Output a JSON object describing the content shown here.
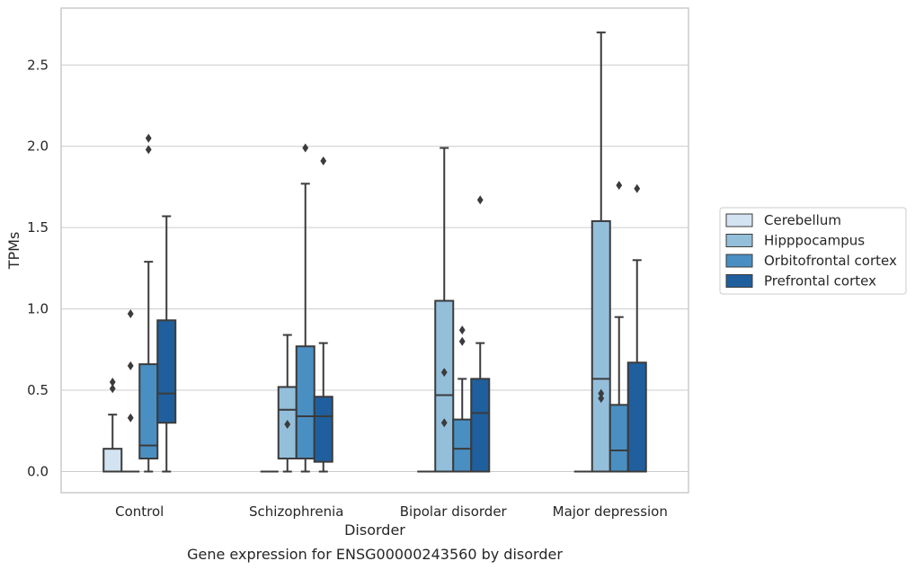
{
  "chart_data": {
    "type": "boxplot",
    "title": "",
    "caption": "Gene expression for ENSG00000243560 by disorder",
    "xlabel": "Disorder",
    "ylabel": "TPMs",
    "ylim": [
      -0.13,
      2.85
    ],
    "yticks": [
      "0.0",
      "0.5",
      "1.0",
      "1.5",
      "2.0",
      "2.5"
    ],
    "grid": "horizontal",
    "legend_position": "right",
    "categories": [
      "Control",
      "Schizophrenia",
      "Bipolar disorder",
      "Major depression"
    ],
    "series": [
      {
        "name": "Cerebellum",
        "color": "#d3e3f2",
        "boxes": [
          {
            "q1": 0.0,
            "median": 0.0,
            "q3": 0.14,
            "whislo": 0.0,
            "whishi": 0.35,
            "fliers": [
              0.51,
              0.55
            ]
          },
          {
            "q1": 0.0,
            "median": 0.0,
            "q3": 0.0,
            "whislo": 0.0,
            "whishi": 0.0,
            "fliers": []
          },
          {
            "q1": 0.0,
            "median": 0.0,
            "q3": 0.0,
            "whislo": 0.0,
            "whishi": 0.0,
            "fliers": []
          },
          {
            "q1": 0.0,
            "median": 0.0,
            "q3": 0.0,
            "whislo": 0.0,
            "whishi": 0.0,
            "fliers": []
          }
        ]
      },
      {
        "name": "Hipppocampus",
        "color": "#93bfdb",
        "boxes": [
          {
            "q1": 0.0,
            "median": 0.0,
            "q3": 0.0,
            "whislo": 0.0,
            "whishi": 0.0,
            "fliers": [
              0.33,
              0.65,
              0.97
            ]
          },
          {
            "q1": 0.08,
            "median": 0.38,
            "q3": 0.52,
            "whislo": 0.0,
            "whishi": 0.84,
            "fliers": [
              0.29
            ]
          },
          {
            "q1": 0.0,
            "median": 0.47,
            "q3": 1.05,
            "whislo": 0.0,
            "whishi": 1.99,
            "fliers": []
          },
          {
            "q1": 0.0,
            "median": 0.57,
            "q3": 1.54,
            "whislo": 0.0,
            "whishi": 2.7,
            "fliers": []
          }
        ]
      },
      {
        "name": "Orbitofrontal cortex",
        "color": "#4a8fc2",
        "boxes": [
          {
            "q1": 0.08,
            "median": 0.16,
            "q3": 0.66,
            "whislo": 0.0,
            "whishi": 1.29,
            "fliers": [
              1.98,
              2.05
            ]
          },
          {
            "q1": 0.08,
            "median": 0.34,
            "q3": 0.77,
            "whislo": 0.0,
            "whishi": 1.77,
            "fliers": [
              1.99
            ]
          },
          {
            "q1": 0.0,
            "median": 0.14,
            "q3": 0.32,
            "whislo": 0.0,
            "whishi": 0.57,
            "fliers": [
              0.8,
              0.87
            ]
          },
          {
            "q1": 0.0,
            "median": 0.13,
            "q3": 0.41,
            "whislo": 0.0,
            "whishi": 0.95,
            "fliers": [
              1.76
            ]
          }
        ]
      },
      {
        "name": "Prefrontal cortex",
        "color": "#1f5f9e",
        "boxes": [
          {
            "q1": 0.3,
            "median": 0.48,
            "q3": 0.93,
            "whislo": 0.0,
            "whishi": 1.57,
            "fliers": []
          },
          {
            "q1": 0.06,
            "median": 0.34,
            "q3": 0.46,
            "whislo": 0.0,
            "whishi": 0.79,
            "fliers": [
              1.91
            ]
          },
          {
            "q1": 0.0,
            "median": 0.36,
            "q3": 0.57,
            "whislo": 0.0,
            "whishi": 0.79,
            "fliers": [
              1.67
            ]
          },
          {
            "q1": 0.0,
            "median": 0.0,
            "q3": 0.67,
            "whislo": 0.0,
            "whishi": 1.3,
            "fliers": [
              1.74
            ]
          }
        ]
      }
    ],
    "extra_fliers": [
      {
        "category": 2,
        "series_offset": -0.5,
        "values": [
          0.3,
          0.61
        ]
      },
      {
        "category": 3,
        "series_offset": -0.5,
        "values": [
          0.45,
          0.48
        ]
      }
    ]
  }
}
